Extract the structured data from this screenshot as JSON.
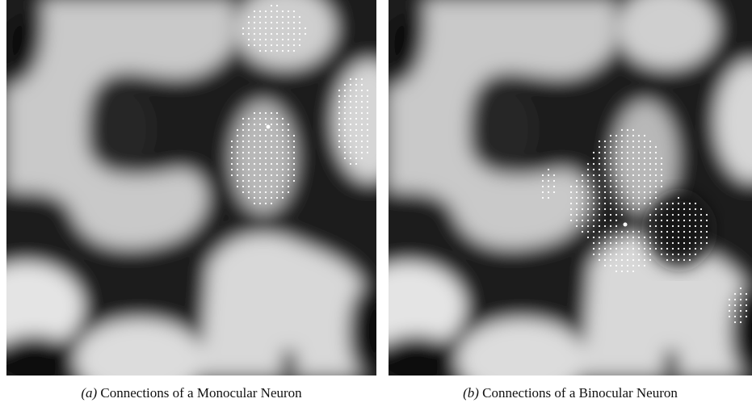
{
  "panels": [
    {
      "label": "(a)",
      "caption": "Connections of a Monocular Neuron"
    },
    {
      "label": "(b)",
      "caption": "Connections of a Binocular Neuron"
    }
  ]
}
